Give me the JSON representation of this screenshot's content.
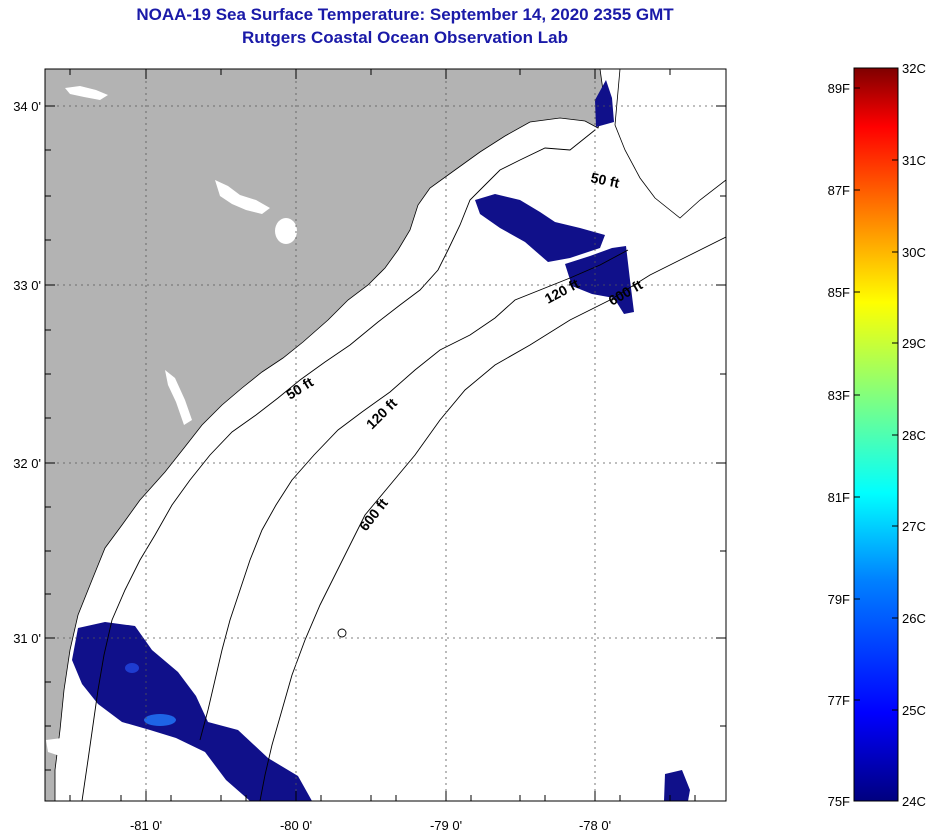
{
  "header": {
    "title": "NOAA-19 Sea Surface Temperature:  September 14, 2020 2355 GMT",
    "subtitle": "Rutgers Coastal Ocean Observation Lab"
  },
  "map": {
    "lon_ticks": [
      "-81 0'",
      "-80 0'",
      "-79 0'",
      "-78 0'"
    ],
    "lat_ticks": [
      "34 0'",
      "33 0'",
      "32 0'",
      "31 0'"
    ],
    "contours": [
      {
        "label": "50 ft",
        "id": "contour-50-north"
      },
      {
        "label": "50 ft",
        "id": "contour-50-mid"
      },
      {
        "label": "120 ft",
        "id": "contour-120-north"
      },
      {
        "label": "120 ft",
        "id": "contour-120-mid"
      },
      {
        "label": "600 ft",
        "id": "contour-600-north"
      },
      {
        "label": "600 ft",
        "id": "contour-600-mid"
      }
    ],
    "colors": {
      "land": "#b3b3b3",
      "ocean": "#ffffff",
      "cold_patch": "#10108a"
    }
  },
  "colorbar": {
    "fahrenheit": [
      "89F",
      "87F",
      "85F",
      "83F",
      "81F",
      "79F",
      "77F",
      "75F"
    ],
    "celsius": [
      "32C",
      "31C",
      "30C",
      "29C",
      "28C",
      "27C",
      "26C",
      "25C",
      "24C"
    ],
    "gradient": [
      "#00007f",
      "#0000ff",
      "#0080ff",
      "#00ffff",
      "#80ff80",
      "#ffff00",
      "#ff8000",
      "#ff0000",
      "#7f0000"
    ]
  }
}
